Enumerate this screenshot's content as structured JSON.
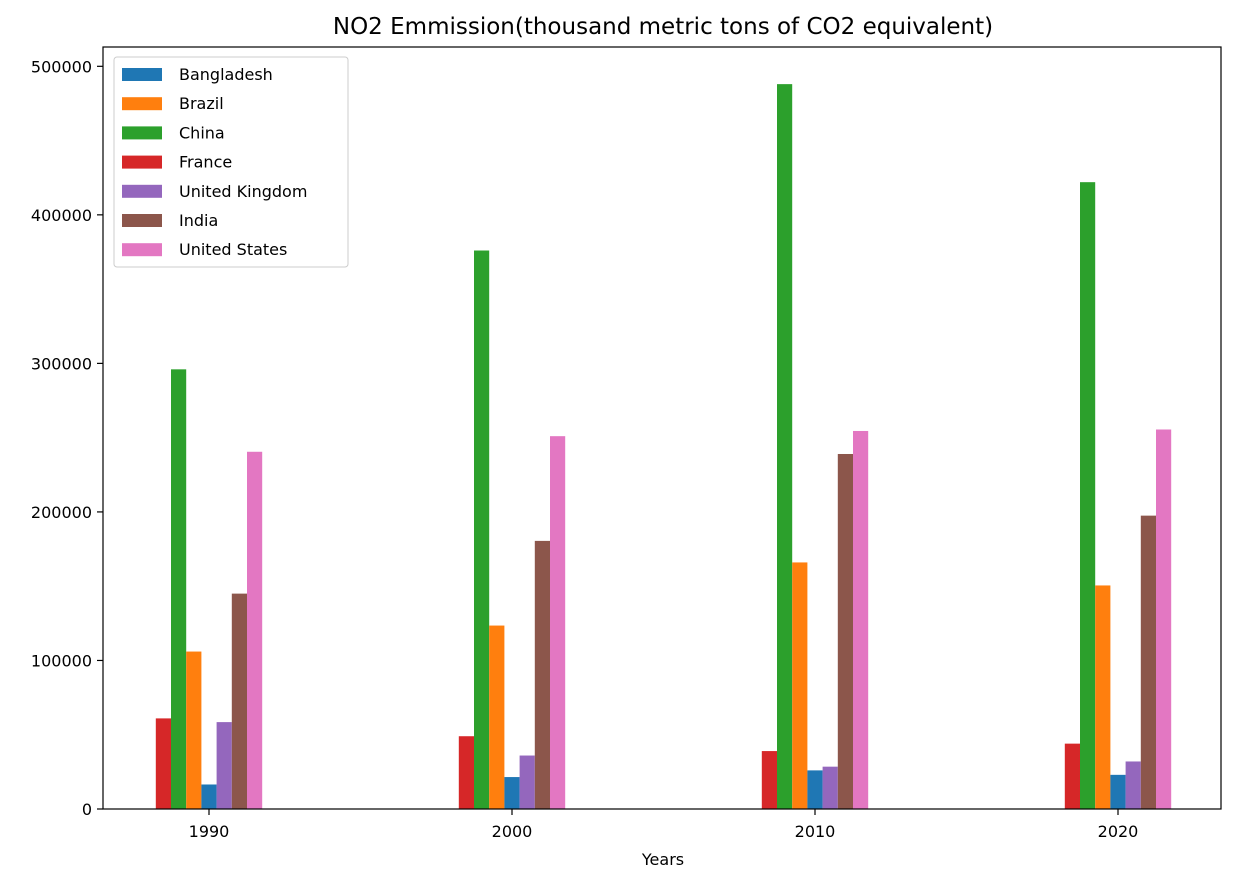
{
  "chart_data": {
    "type": "bar",
    "title": "NO2 Emmission(thousand metric tons of CO2 equivalent)",
    "xlabel": "Years",
    "ylabel": "",
    "categories": [
      "1990",
      "2000",
      "2010",
      "2020"
    ],
    "ylim": [
      0,
      513000
    ],
    "yticks": [
      0,
      100000,
      200000,
      300000,
      400000,
      500000
    ],
    "ytick_labels": [
      "0",
      "100000",
      "200000",
      "300000",
      "400000",
      "500000"
    ],
    "grid": false,
    "legend_position": "top-left",
    "legend_order": [
      "Bangladesh",
      "Brazil",
      "China",
      "France",
      "United Kingdom",
      "India",
      "United States"
    ],
    "series": [
      {
        "name": "France",
        "color": "#d62728",
        "values": [
          61000,
          49000,
          39000,
          44000
        ]
      },
      {
        "name": "China",
        "color": "#2ca02c",
        "values": [
          296000,
          376000,
          488000,
          422000
        ]
      },
      {
        "name": "Brazil",
        "color": "#ff7f0e",
        "values": [
          106000,
          123500,
          166000,
          150500
        ]
      },
      {
        "name": "Bangladesh",
        "color": "#1f77b4",
        "values": [
          16500,
          21500,
          26000,
          23000
        ]
      },
      {
        "name": "United Kingdom",
        "color": "#9467bd",
        "values": [
          58500,
          36000,
          28500,
          32000
        ]
      },
      {
        "name": "India",
        "color": "#8c564b",
        "values": [
          145000,
          180500,
          239000,
          197500
        ]
      },
      {
        "name": "United States",
        "color": "#e377c2",
        "values": [
          240500,
          251000,
          254500,
          255500
        ]
      }
    ]
  }
}
